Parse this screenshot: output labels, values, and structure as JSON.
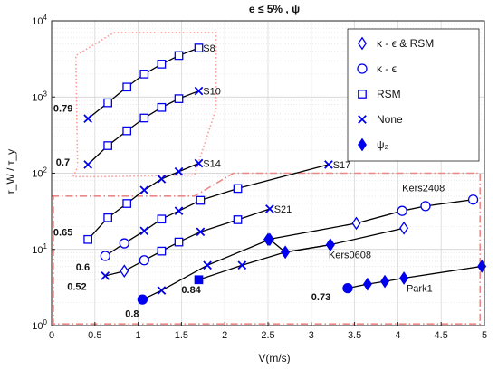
{
  "chart_data": {
    "type": "line",
    "title": "e ≤ 5% , ψ",
    "xlabel": "V(m/s)",
    "ylabel": "τ_W / τ_y",
    "xlim": [
      0,
      5
    ],
    "ylim": [
      1,
      10000
    ],
    "yscale": "log",
    "grid": true,
    "x_ticks": [
      "0",
      "0.5",
      "1",
      "1.5",
      "2",
      "2.5",
      "3",
      "3.5",
      "4",
      "4.5",
      "5"
    ],
    "y_ticks": [
      "10^0",
      "10^1",
      "10^2",
      "10^3",
      "10^4"
    ],
    "legend_position": "top-right",
    "legend": [
      {
        "marker": "diamond-open",
        "label": "κ - ϵ & RSM"
      },
      {
        "marker": "circle-open",
        "label": "κ - ϵ"
      },
      {
        "marker": "square-open",
        "label": "RSM"
      },
      {
        "marker": "x",
        "label": "None"
      },
      {
        "marker": "diamond-filled",
        "label": "ψ₂"
      }
    ],
    "series": [
      {
        "name": "S8",
        "points": [
          {
            "x": 0.42,
            "y": 520,
            "m": "x"
          },
          {
            "x": 0.65,
            "y": 840,
            "m": "square-open"
          },
          {
            "x": 0.87,
            "y": 1350,
            "m": "square-open"
          },
          {
            "x": 1.07,
            "y": 2000,
            "m": "square-open"
          },
          {
            "x": 1.27,
            "y": 2700,
            "m": "square-open"
          },
          {
            "x": 1.47,
            "y": 3500,
            "m": "square-open"
          },
          {
            "x": 1.7,
            "y": 4400,
            "m": "square-open"
          }
        ]
      },
      {
        "name": "S10",
        "points": [
          {
            "x": 0.42,
            "y": 130,
            "m": "x"
          },
          {
            "x": 0.65,
            "y": 230,
            "m": "square-open"
          },
          {
            "x": 0.87,
            "y": 360,
            "m": "square-open"
          },
          {
            "x": 1.07,
            "y": 530,
            "m": "square-open"
          },
          {
            "x": 1.27,
            "y": 730,
            "m": "square-open"
          },
          {
            "x": 1.47,
            "y": 950,
            "m": "square-open"
          },
          {
            "x": 1.7,
            "y": 1200,
            "m": "x"
          }
        ]
      },
      {
        "name": "S14",
        "points": [
          {
            "x": 0.42,
            "y": 13.5,
            "m": "square-open"
          },
          {
            "x": 0.65,
            "y": 26,
            "m": "square-open"
          },
          {
            "x": 0.87,
            "y": 40,
            "m": "square-open"
          },
          {
            "x": 1.07,
            "y": 60,
            "m": "x"
          },
          {
            "x": 1.27,
            "y": 84,
            "m": "x"
          },
          {
            "x": 1.47,
            "y": 105,
            "m": "x"
          },
          {
            "x": 1.7,
            "y": 135,
            "m": "x"
          }
        ]
      },
      {
        "name": "S17",
        "points": [
          {
            "x": 0.62,
            "y": 8.2,
            "m": "circle-open"
          },
          {
            "x": 0.84,
            "y": 12,
            "m": "circle-open"
          },
          {
            "x": 1.07,
            "y": 17.5,
            "m": "x"
          },
          {
            "x": 1.27,
            "y": 25,
            "m": "square-open"
          },
          {
            "x": 1.47,
            "y": 32,
            "m": "x"
          },
          {
            "x": 1.72,
            "y": 44,
            "m": "square-open"
          },
          {
            "x": 2.15,
            "y": 63,
            "m": "square-open"
          },
          {
            "x": 3.2,
            "y": 130,
            "m": "x"
          }
        ]
      },
      {
        "name": "S21",
        "points": [
          {
            "x": 0.62,
            "y": 4.5,
            "m": "x"
          },
          {
            "x": 0.84,
            "y": 5.2,
            "m": "diamond-open"
          },
          {
            "x": 1.07,
            "y": 7.2,
            "m": "circle-open"
          },
          {
            "x": 1.27,
            "y": 9.5,
            "m": "square-open"
          },
          {
            "x": 1.47,
            "y": 12.5,
            "m": "square-open"
          },
          {
            "x": 1.72,
            "y": 17,
            "m": "x"
          },
          {
            "x": 2.15,
            "y": 24.5,
            "m": "square-open"
          },
          {
            "x": 2.52,
            "y": 34,
            "m": "x"
          }
        ]
      },
      {
        "name": "Kers2408",
        "points": [
          {
            "x": 2.5,
            "y": 13.5,
            "m": "diamond-filled"
          },
          {
            "x": 3.52,
            "y": 22,
            "m": "diamond-open"
          },
          {
            "x": 4.05,
            "y": 32,
            "m": "circle-open"
          },
          {
            "x": 4.32,
            "y": 37,
            "m": "circle-open"
          },
          {
            "x": 4.87,
            "y": 45,
            "m": "circle-open"
          }
        ]
      },
      {
        "name": "Kers0608",
        "points": [
          {
            "x": 1.05,
            "y": 2.2,
            "m": "circle-filled"
          },
          {
            "x": 1.27,
            "y": 2.9,
            "m": "x"
          },
          {
            "x": 1.8,
            "y": 6.2,
            "m": "x"
          },
          {
            "x": 2.52,
            "y": 13.5,
            "m": "diamond-filled"
          },
          {
            "x": 2.7,
            "y": 9.2,
            "m": "diamond-filled"
          },
          {
            "x": 3.22,
            "y": 11.5,
            "m": "diamond-filled"
          },
          {
            "x": 4.07,
            "y": 19,
            "m": "diamond-open"
          }
        ]
      },
      {
        "name": "",
        "points": [
          {
            "x": 1.7,
            "y": 4,
            "m": "square-filled"
          },
          {
            "x": 2.2,
            "y": 6.2,
            "m": "x"
          },
          {
            "x": 2.7,
            "y": 9.2,
            "m": "diamond-filled"
          },
          {
            "x": 3.22,
            "y": 11.5,
            "m": "diamond-filled"
          }
        ]
      },
      {
        "name": "Park1",
        "points": [
          {
            "x": 3.42,
            "y": 3.1,
            "m": "circle-filled"
          },
          {
            "x": 3.65,
            "y": 3.5,
            "m": "diamond-filled"
          },
          {
            "x": 3.85,
            "y": 3.8,
            "m": "diamond-filled"
          },
          {
            "x": 4.07,
            "y": 4.2,
            "m": "diamond-filled"
          },
          {
            "x": 4.97,
            "y": 6,
            "m": "diamond-filled"
          }
        ]
      }
    ],
    "annotations": [
      {
        "text": "S8",
        "x": 1.75,
        "y": 4400,
        "bold": false
      },
      {
        "text": "S10",
        "x": 1.75,
        "y": 1200,
        "bold": false
      },
      {
        "text": "S14",
        "x": 1.75,
        "y": 135,
        "bold": false
      },
      {
        "text": "S17",
        "x": 3.25,
        "y": 130,
        "bold": false
      },
      {
        "text": "S21",
        "x": 2.57,
        "y": 34,
        "bold": false
      },
      {
        "text": "Kers2408",
        "x": 4.05,
        "y": 65,
        "bold": false
      },
      {
        "text": "Kers0608",
        "x": 3.2,
        "y": 8.5,
        "bold": false
      },
      {
        "text": "Park1",
        "x": 4.1,
        "y": 3.1,
        "bold": false
      },
      {
        "text": "0.79",
        "x": 0.02,
        "y": 720,
        "bold": true
      },
      {
        "text": "0.7",
        "x": 0.05,
        "y": 140,
        "bold": true
      },
      {
        "text": "0.65",
        "x": 0.02,
        "y": 17,
        "bold": true
      },
      {
        "text": "0.6",
        "x": 0.28,
        "y": 5.9,
        "bold": true
      },
      {
        "text": "0.52",
        "x": 0.18,
        "y": 3.3,
        "bold": true
      },
      {
        "text": "0.84",
        "x": 1.5,
        "y": 3.0,
        "bold": true
      },
      {
        "text": "0.8",
        "x": 0.85,
        "y": 1.45,
        "bold": true
      },
      {
        "text": "0.73",
        "x": 3.0,
        "y": 2.4,
        "bold": true
      }
    ],
    "regions": [
      {
        "style": "dotted",
        "color": "#ff9999",
        "points": [
          [
            0.25,
            90
          ],
          [
            0.3,
            120
          ],
          [
            0.28,
            3500
          ],
          [
            0.72,
            7000
          ],
          [
            1.9,
            7000
          ],
          [
            1.9,
            700
          ],
          [
            1.65,
            95
          ],
          [
            0.6,
            90
          ]
        ]
      },
      {
        "style": "dash-dot",
        "color": "#e88",
        "points": [
          [
            0,
            50
          ],
          [
            1.65,
            50
          ],
          [
            2.1,
            100
          ],
          [
            4.95,
            100
          ],
          [
            4.95,
            1.05
          ],
          [
            0.02,
            1.05
          ],
          [
            0.02,
            50
          ]
        ]
      }
    ]
  }
}
